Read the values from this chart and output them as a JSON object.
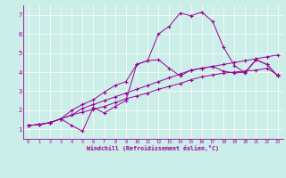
{
  "xlabel": "Windchill (Refroidissement éolien,°C)",
  "bg_color": "#cceee8",
  "line_color": "#990099",
  "xlim": [
    -0.5,
    23.5
  ],
  "ylim": [
    0.5,
    7.5
  ],
  "xticks": [
    0,
    1,
    2,
    3,
    4,
    5,
    6,
    7,
    8,
    9,
    10,
    11,
    12,
    13,
    14,
    15,
    16,
    17,
    18,
    19,
    20,
    21,
    22,
    23
  ],
  "yticks": [
    1,
    2,
    3,
    4,
    5,
    6,
    7
  ],
  "series": [
    {
      "x": [
        0,
        1,
        2,
        3,
        4,
        5,
        6,
        7,
        8,
        9,
        10,
        11,
        12,
        13,
        14,
        15,
        16,
        17,
        18,
        19,
        20,
        21,
        22,
        23
      ],
      "y": [
        1.2,
        1.25,
        1.35,
        1.55,
        1.75,
        1.9,
        2.05,
        2.2,
        2.4,
        2.6,
        2.75,
        2.9,
        3.1,
        3.25,
        3.4,
        3.6,
        3.75,
        3.85,
        3.95,
        4.0,
        4.05,
        4.1,
        4.2,
        3.85
      ]
    },
    {
      "x": [
        0,
        1,
        2,
        3,
        4,
        5,
        6,
        7,
        8,
        9,
        10,
        11,
        12,
        13,
        14,
        15,
        16,
        17,
        18,
        19,
        20,
        21,
        22,
        23
      ],
      "y": [
        1.2,
        1.25,
        1.35,
        1.55,
        1.75,
        2.1,
        2.3,
        2.5,
        2.7,
        2.9,
        3.1,
        3.3,
        3.5,
        3.7,
        3.9,
        4.1,
        4.2,
        4.3,
        4.4,
        4.5,
        4.6,
        4.7,
        4.8,
        4.9
      ]
    },
    {
      "x": [
        0,
        1,
        2,
        3,
        4,
        5,
        6,
        7,
        8,
        9,
        10,
        11,
        12,
        13,
        14,
        15,
        16,
        17,
        18,
        19,
        20,
        21,
        22,
        23
      ],
      "y": [
        1.2,
        1.25,
        1.35,
        1.55,
        1.2,
        0.9,
        2.15,
        1.85,
        2.2,
        2.5,
        4.4,
        4.6,
        6.0,
        6.4,
        7.1,
        6.95,
        7.15,
        6.65,
        5.3,
        4.35,
        3.95,
        4.65,
        4.4,
        3.8
      ]
    },
    {
      "x": [
        0,
        1,
        2,
        3,
        4,
        5,
        6,
        7,
        8,
        9,
        10,
        11,
        12,
        13,
        14,
        15,
        16,
        17,
        18,
        19,
        20,
        21,
        22,
        23
      ],
      "y": [
        1.2,
        1.25,
        1.35,
        1.55,
        2.0,
        2.3,
        2.55,
        2.95,
        3.3,
        3.5,
        4.4,
        4.6,
        4.65,
        4.2,
        3.8,
        4.1,
        4.2,
        4.3,
        4.05,
        3.95,
        4.0,
        4.65,
        4.4,
        3.8
      ]
    }
  ]
}
